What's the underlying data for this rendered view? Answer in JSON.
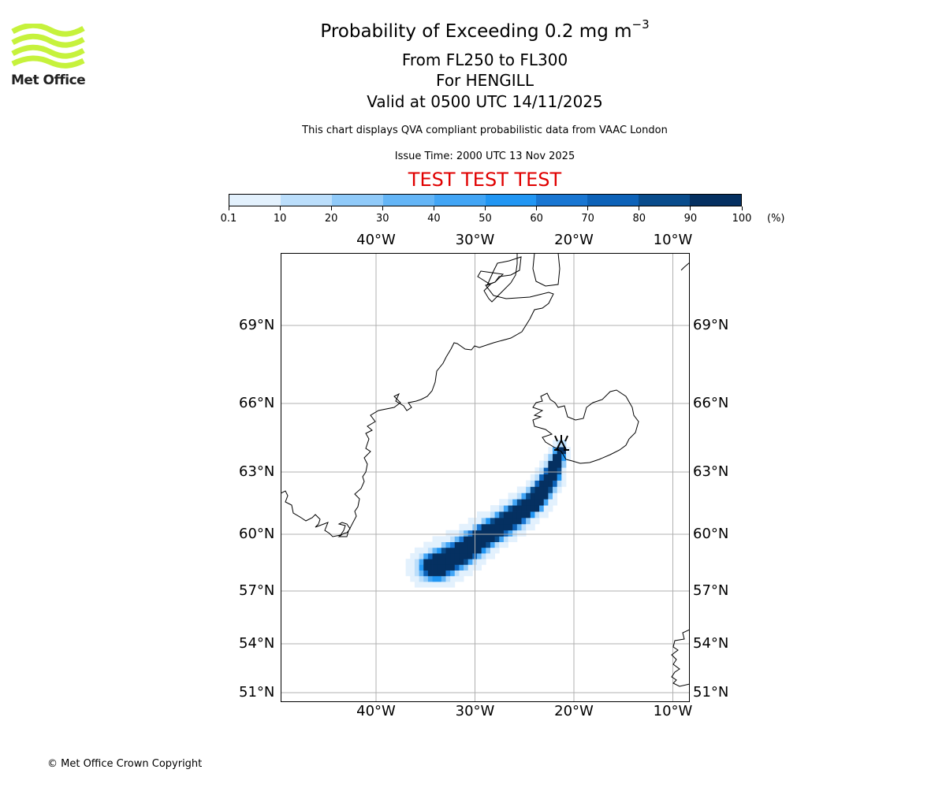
{
  "logo": {
    "name": "Met Office",
    "brand_color": "#c6f23c"
  },
  "header": {
    "title_main": "Probability of Exceeding 0.2 mg m",
    "title_superscript": "−3",
    "subtitle_levels": "From FL250 to FL300",
    "subtitle_volcano": "For HENGILL",
    "subtitle_valid": "Valid at 0500 UTC 14/11/2025",
    "description": "This chart displays QVA compliant probabilistic data from VAAC London",
    "issue_time": "Issue Time: 2000 UTC 13 Nov 2025",
    "test_banner": "TEST TEST TEST",
    "test_banner_color": "#e00000"
  },
  "colorbar": {
    "unit_label": "(%)",
    "tick_labels": [
      "0.1",
      "10",
      "20",
      "30",
      "40",
      "50",
      "60",
      "70",
      "80",
      "90",
      "100"
    ],
    "colors": [
      "#e3f1fd",
      "#bbdefb",
      "#90caf9",
      "#64b5f6",
      "#42a5f5",
      "#2196f3",
      "#1976d2",
      "#0d62b8",
      "#094c8c",
      "#053061"
    ]
  },
  "map": {
    "projection_extent": {
      "lon_min": -49.7,
      "lon_max": -8.4,
      "lat_min": 50.7,
      "lat_max": 71.8
    },
    "lon_ticks": [
      {
        "value": -40,
        "label": "40°W"
      },
      {
        "value": -30,
        "label": "30°W"
      },
      {
        "value": -20,
        "label": "20°W"
      },
      {
        "value": -10,
        "label": "10°W"
      }
    ],
    "lat_ticks": [
      {
        "value": 69,
        "label": "69°N"
      },
      {
        "value": 66,
        "label": "66°N"
      },
      {
        "value": 63,
        "label": "63°N"
      },
      {
        "value": 60,
        "label": "60°N"
      },
      {
        "value": 57,
        "label": "57°N"
      },
      {
        "value": 54,
        "label": "54°N"
      },
      {
        "value": 51,
        "label": "51°N"
      }
    ],
    "volcano": {
      "name": "HENGILL",
      "lon": -21.3,
      "lat": 64.1,
      "icon": "volcano-symbol-icon"
    },
    "plume_axis": [
      {
        "lon": -21.3,
        "lat": 64.0,
        "width_deg": 0.5
      },
      {
        "lon": -22.3,
        "lat": 62.8,
        "width_deg": 0.9
      },
      {
        "lon": -24.0,
        "lat": 61.6,
        "width_deg": 1.1
      },
      {
        "lon": -26.5,
        "lat": 60.7,
        "width_deg": 1.2
      },
      {
        "lon": -29.0,
        "lat": 59.9,
        "width_deg": 1.3
      },
      {
        "lon": -31.5,
        "lat": 59.0,
        "width_deg": 1.5
      },
      {
        "lon": -34.0,
        "lat": 58.3,
        "width_deg": 1.6
      }
    ],
    "plume_probability_range_pct": [
      0.1,
      100
    ]
  },
  "footer": {
    "copyright": "© Met Office Crown Copyright"
  }
}
